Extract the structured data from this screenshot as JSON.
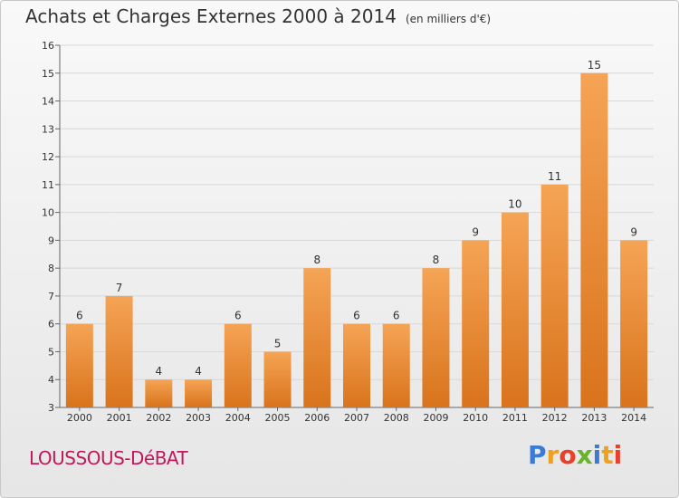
{
  "header": {
    "title": "Achats et Charges Externes 2000 à 2014",
    "subtitle": "(en milliers d'€)"
  },
  "footer": {
    "place": "LOUSSOUS-DéBAT",
    "logo": "Proxiti"
  },
  "colors": {
    "bar_top": "#f5a455",
    "bar_bottom": "#d9731c",
    "place": "#c2185b",
    "logo_letters": [
      "#3a7bd5",
      "#f0a020",
      "#e8402a",
      "#6ab42d",
      "#3a7bd5",
      "#f0a020",
      "#e8402a"
    ]
  },
  "chart_data": {
    "type": "bar",
    "title": "Achats et Charges Externes 2000 à 2014",
    "subtitle": "(en milliers d'€)",
    "categories": [
      "2000",
      "2001",
      "2002",
      "2003",
      "2004",
      "2005",
      "2006",
      "2007",
      "2008",
      "2009",
      "2010",
      "2011",
      "2012",
      "2013",
      "2014"
    ],
    "values": [
      6,
      7,
      4,
      4,
      6,
      5,
      8,
      6,
      6,
      8,
      9,
      10,
      11,
      15,
      9
    ],
    "ylim": [
      3,
      16
    ],
    "yticks": [
      3,
      4,
      5,
      6,
      7,
      8,
      9,
      10,
      11,
      12,
      13,
      14,
      15,
      16
    ],
    "grid": true,
    "legend": "none"
  }
}
